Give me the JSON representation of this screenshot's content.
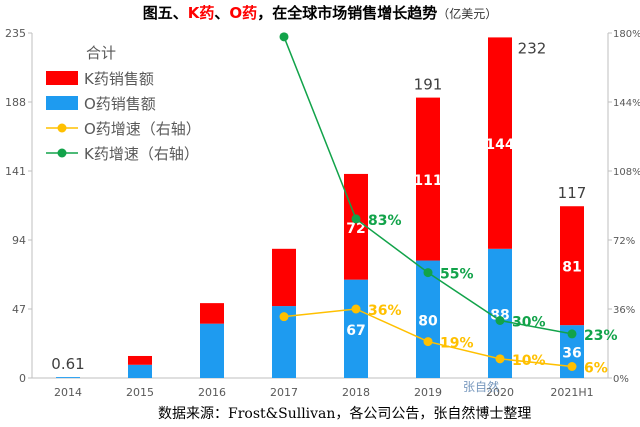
{
  "title": {
    "part1": "图五、",
    "part2": "K药",
    "part3": "、",
    "part4": "O药",
    "part5": "，在全球市场销售增长趋势",
    "unit": "（亿美元）"
  },
  "source": "数据来源：Frost&Sullivan，各公司公告，张自然博士整理",
  "watermark": "张自然",
  "colors": {
    "k_bar": "#ff0000",
    "o_bar": "#1e9bf0",
    "o_line": "#ffc000",
    "k_line": "#12a34a",
    "axis": "#bfbfbf",
    "text": "#595959",
    "white": "#ffffff"
  },
  "chart_data": {
    "type": "bar",
    "stacked": true,
    "categories": [
      "2014",
      "2015",
      "2016",
      "2017",
      "2018",
      "2019",
      "2020",
      "2021H1"
    ],
    "ylim": [
      0,
      235
    ],
    "yticks": [
      "0",
      "47",
      "94",
      "141",
      "188",
      "235"
    ],
    "y2lim": [
      0,
      180
    ],
    "y2ticks": [
      "0%",
      "36%",
      "72%",
      "108%",
      "144%",
      "180%"
    ],
    "legend_title": "合计",
    "legend_position": "top-left",
    "series": [
      {
        "name": "K药销售额",
        "kind": "bar",
        "axis": "left",
        "values": [
          0,
          6,
          14,
          39,
          72,
          111,
          144,
          81
        ],
        "labels": [
          "",
          "",
          "",
          "",
          "72",
          "111",
          "144",
          "81"
        ]
      },
      {
        "name": "O药销售额",
        "kind": "bar",
        "axis": "left",
        "values": [
          0.61,
          9,
          37,
          49,
          67,
          80,
          88,
          36
        ],
        "labels": [
          "",
          "",
          "",
          "",
          "67",
          "80",
          "88",
          "36"
        ]
      },
      {
        "name": "O药增速（右轴）",
        "kind": "line",
        "axis": "right",
        "values": [
          null,
          null,
          null,
          32,
          36,
          19,
          10,
          6
        ],
        "labels": [
          "",
          "",
          "",
          "",
          "36%",
          "19%",
          "10%",
          "6%"
        ]
      },
      {
        "name": "K药增速（右轴）",
        "kind": "line",
        "axis": "right",
        "values": [
          null,
          null,
          null,
          178,
          83,
          55,
          30,
          23
        ],
        "labels": [
          "",
          "",
          "",
          "",
          "83%",
          "55%",
          "30%",
          "23%"
        ]
      }
    ],
    "totals": [
      "0.61",
      "",
      "",
      "",
      "",
      "191",
      "232",
      "117"
    ]
  }
}
